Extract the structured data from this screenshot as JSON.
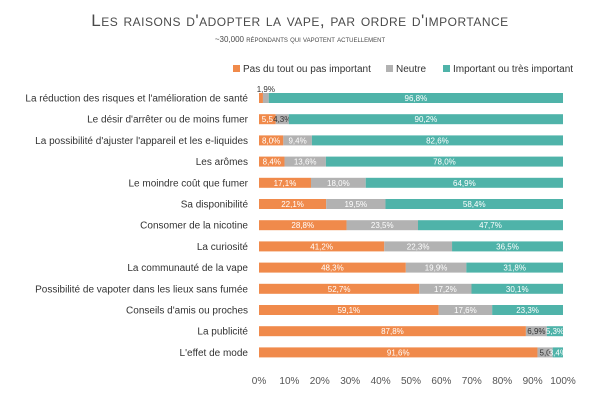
{
  "chart_data": {
    "type": "bar",
    "stacked": true,
    "orientation": "horizontal",
    "title": "Les raisons d'adopter la vape, par ordre d'importance",
    "subtitle": "~30,000 répondants qui vapotent actuellement",
    "xlabel": "",
    "ylabel": "",
    "xlim": [
      0,
      100
    ],
    "x_ticks": [
      "0%",
      "10%",
      "20%",
      "30%",
      "40%",
      "50%",
      "60%",
      "70%",
      "80%",
      "90%",
      "100%"
    ],
    "legend_position": "top-right",
    "grid": false,
    "categories": [
      "La réduction des risques et l'amélioration de santé",
      "Le désir d'arrêter ou de moins fumer",
      "La possibilité d'ajuster l'appareil et les e-liquides",
      "Les arômes",
      "Le moindre coût que fumer",
      "Sa disponibilité",
      "Consomer de la nicotine",
      "La curiosité",
      "La communauté de la vape",
      "Possibilité de vapoter dans les lieux sans fumée",
      "Conseils d'amis ou proches",
      "La publicité",
      "L'effet de mode"
    ],
    "series": [
      {
        "name": "Pas du tout ou pas important",
        "color": "#f08a4b",
        "values": [
          1.3,
          5.5,
          8.0,
          8.4,
          17.1,
          22.1,
          28.8,
          41.2,
          48.3,
          52.7,
          59.1,
          87.8,
          91.6
        ],
        "labels": [
          "1,3%",
          "5,5",
          "8,0%",
          "8,4%",
          "17,1%",
          "22,1%",
          "28,8%",
          "41,2%",
          "48,3%",
          "52,7%",
          "59,1%",
          "87,8%",
          "91,6%"
        ]
      },
      {
        "name": "Neutre",
        "color": "#b2b2b2",
        "values": [
          1.9,
          4.3,
          9.4,
          13.6,
          18.0,
          19.5,
          23.5,
          22.3,
          19.9,
          17.2,
          17.6,
          6.9,
          5.0
        ],
        "labels": [
          "1,9%",
          "4,3%",
          "9,4%",
          "13,6%",
          "18,0%",
          "19,5%",
          "23,5%",
          "22,3%",
          "19,9%",
          "17,2%",
          "17,6%",
          "6,9%",
          "5,0"
        ]
      },
      {
        "name": "Important ou très important",
        "color": "#4fb3a9",
        "values": [
          96.8,
          90.2,
          82.6,
          78.0,
          64.9,
          58.4,
          47.7,
          36.5,
          31.8,
          30.1,
          23.3,
          5.3,
          3.4
        ],
        "labels": [
          "96,8%",
          "90,2%",
          "82,6%",
          "78,0%",
          "64,9%",
          "58,4%",
          "47,7%",
          "36,5%",
          "31,8%",
          "30,1%",
          "23,3%",
          "5,3%",
          "3,4%"
        ]
      }
    ]
  }
}
